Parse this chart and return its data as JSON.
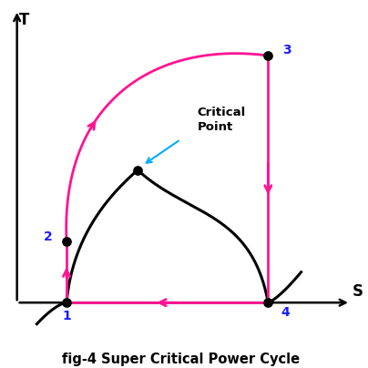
{
  "title": "fig-4 Super Critical Power Cycle",
  "xlabel": "S",
  "ylabel": "T",
  "bg_color": "#ffffff",
  "cycle_color": "#FF1493",
  "dome_color": "#000000",
  "point_color": "#000000",
  "label_color": "#1a1aff",
  "critical_arrow_color": "#00AAFF",
  "p1": [
    0.17,
    0.1
  ],
  "p2": [
    0.17,
    0.3
  ],
  "p3": [
    0.78,
    0.91
  ],
  "p4": [
    0.78,
    0.1
  ],
  "critical_point": [
    0.385,
    0.535
  ],
  "xlim": [
    -0.02,
    1.05
  ],
  "ylim": [
    -0.02,
    1.08
  ]
}
